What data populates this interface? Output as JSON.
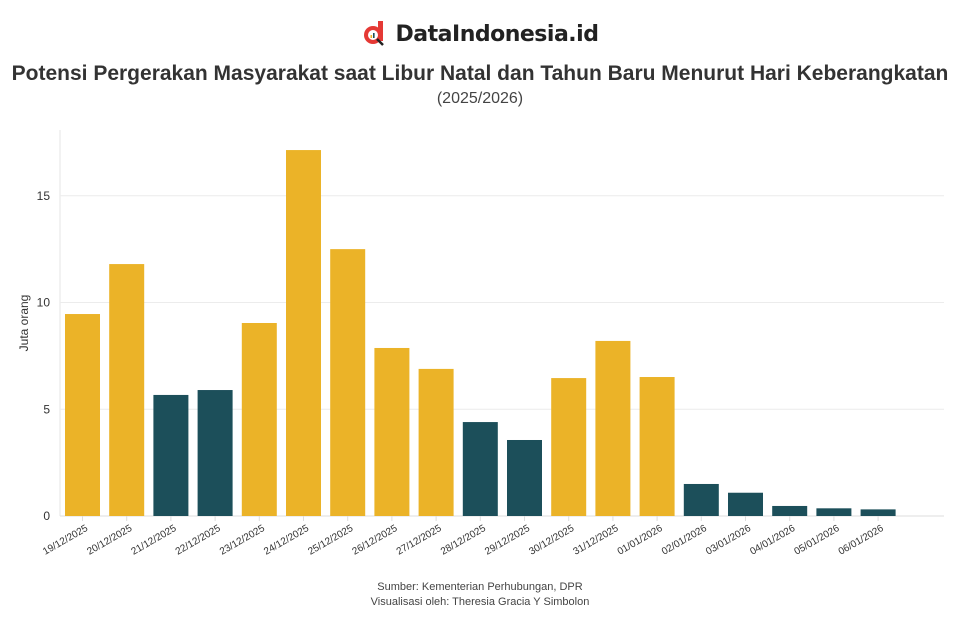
{
  "brand": {
    "name": "DataIndonesia.id",
    "logo_color": "#E53935"
  },
  "title": "Potensi Pergerakan Masyarakat saat Libur Natal dan Tahun Baru Menurut Hari Keberangkatan",
  "subtitle": "(2025/2026)",
  "footer": {
    "source": "Sumber: Kementerian Perhubungan, DPR",
    "credit": "Visualisasi oleh: Theresia Gracia Y Simbolon"
  },
  "chart_data": {
    "type": "bar",
    "ylabel": "Juta orang",
    "xlabel": "",
    "ylim": [
      0,
      18
    ],
    "yticks": [
      0,
      5,
      10,
      15
    ],
    "grid": true,
    "categories": [
      "19/12/2025",
      "20/12/2025",
      "21/12/2025",
      "22/12/2025",
      "23/12/2025",
      "24/12/2025",
      "25/12/2025",
      "26/12/2025",
      "27/12/2025",
      "28/12/2025",
      "29/12/2025",
      "30/12/2025",
      "31/12/2025",
      "01/01/2026",
      "02/01/2026",
      "03/01/2026",
      "04/01/2026",
      "05/01/2026",
      "06/01/2026"
    ],
    "values": [
      9.46,
      11.8,
      5.67,
      5.9,
      9.04,
      17.14,
      12.5,
      7.87,
      6.89,
      4.4,
      3.56,
      6.46,
      8.2,
      6.51,
      1.5,
      1.09,
      0.47,
      0.36,
      0.31
    ],
    "highlight": [
      true,
      true,
      false,
      false,
      true,
      true,
      true,
      true,
      true,
      false,
      false,
      true,
      true,
      true,
      false,
      false,
      false,
      false,
      false
    ],
    "colors": {
      "highlight": "#EBB328",
      "normal": "#1C4F5A"
    }
  }
}
